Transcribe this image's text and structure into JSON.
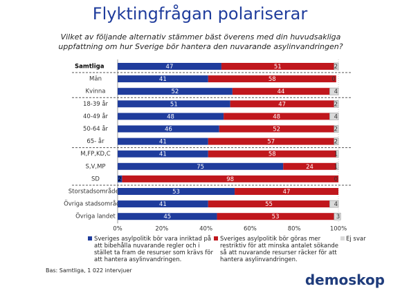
{
  "chart_data": {
    "type": "stacked-bar-horizontal",
    "title": "Flyktingfrågan polariserar",
    "subtitle": "Vilket av följande alternativ stämmer bäst överens med din huvudsakliga uppfattning om hur Sverige bör hantera den nuvarande asylinvandringen?",
    "categories": [
      "Samtliga",
      "Män",
      "Kvinna",
      "18-39 år",
      "40-49 år",
      "50-64 år",
      "65- år",
      "M,FP,KD,C",
      "S,V,MP",
      "SD",
      "Storstadsområden",
      "Övriga stadsområden",
      "Övriga landet"
    ],
    "series": [
      {
        "name": "Sveriges asylpolitik bör vara inriktad på att bibehålla nuvarande regler och i stället ta fram de resurser som krävs för att hantera asylinvandringen.",
        "color": "#1f3c9c",
        "values": [
          47,
          41,
          52,
          51,
          48,
          46,
          41,
          41,
          75,
          2,
          53,
          41,
          45
        ]
      },
      {
        "name": "Sveriges asylpolitik bör göras mer restriktiv för att minska antalet sökande så att nuvarande resurser räcker för att hantera asylinvandringen.",
        "color": "#c0171d",
        "values": [
          51,
          58,
          44,
          47,
          48,
          52,
          57,
          58,
          24,
          98,
          47,
          55,
          53
        ]
      },
      {
        "name": "Ej svar",
        "color": "#d9d9d9",
        "values": [
          2,
          0,
          4,
          2,
          4,
          2,
          2,
          1,
          1,
          0,
          0,
          4,
          3
        ],
        "value_labels": [
          "2",
          "0",
          "4",
          "2",
          "4",
          "2",
          "2",
          "1",
          "1",
          "0",
          null,
          "4",
          "3"
        ]
      }
    ],
    "xlim": [
      0,
      100
    ],
    "xticks": [
      {
        "value": 0,
        "label": "0%"
      },
      {
        "value": 20,
        "label": "20%"
      },
      {
        "value": 40,
        "label": "40%"
      },
      {
        "value": 60,
        "label": "60%"
      },
      {
        "value": 80,
        "label": "80%"
      },
      {
        "value": 100,
        "label": "100%"
      }
    ],
    "grid": false,
    "footnote": "Bas: Samtliga, 1 022 intervjuer",
    "logo": "demoskop"
  }
}
